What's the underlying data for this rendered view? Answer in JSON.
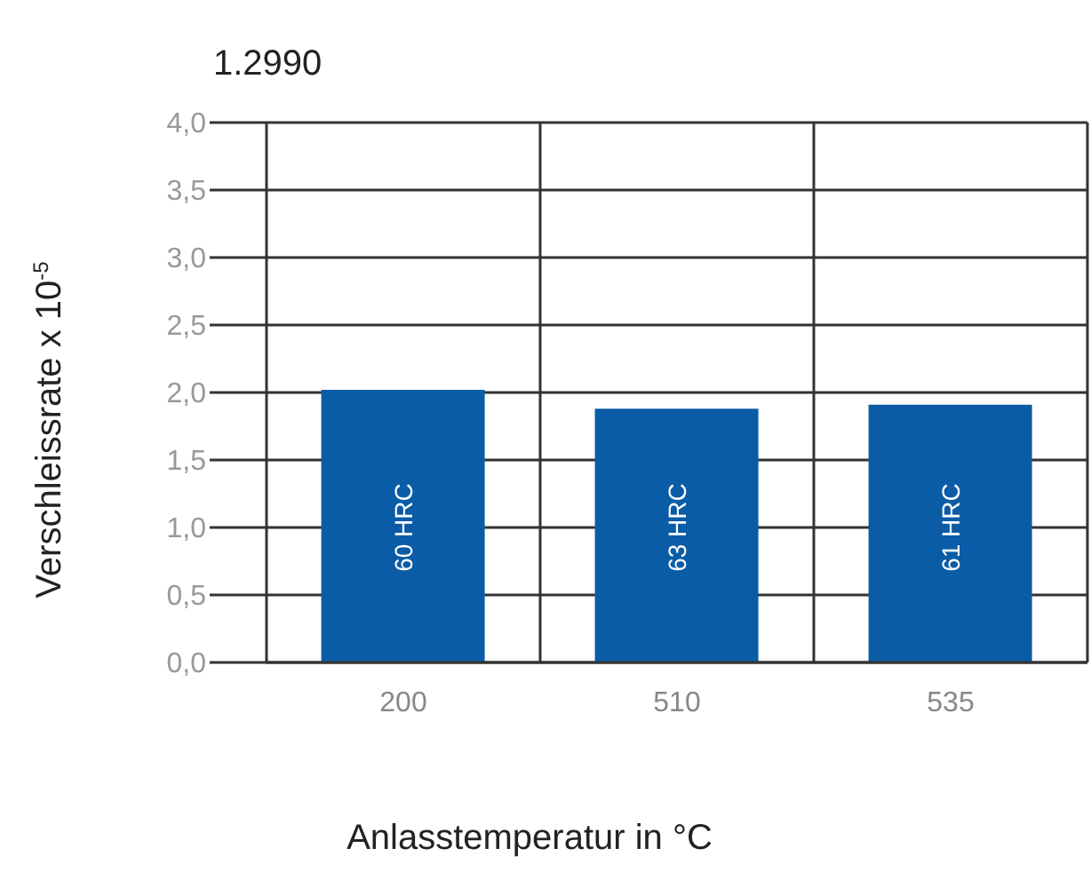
{
  "chart_data": {
    "type": "bar",
    "title": "1.2990",
    "xlabel": "Anlasstemperatur in °C",
    "ylabel": "Verschleissrate x 10$^{-5}$",
    "categories": [
      "200",
      "510",
      "535"
    ],
    "values": [
      2.02,
      1.88,
      1.91
    ],
    "color": "#0b5ca6",
    "ylim": [
      0,
      4
    ],
    "yticks": [
      {
        "value": 0,
        "label": "0,0"
      },
      {
        "value": 0.5,
        "label": "0,5"
      },
      {
        "value": 1,
        "label": "1,0"
      },
      {
        "value": 1.5,
        "label": "1,5"
      },
      {
        "value": 2,
        "label": "2,0"
      },
      {
        "value": 2.5,
        "label": "2,5"
      },
      {
        "value": 3,
        "label": "3,0"
      },
      {
        "value": 3.5,
        "label": "3,5"
      },
      {
        "value": 4,
        "label": "4,0"
      }
    ],
    "grid": true,
    "annotations": [
      "60 HRC",
      "63 HRC",
      "61 HRC"
    ]
  }
}
